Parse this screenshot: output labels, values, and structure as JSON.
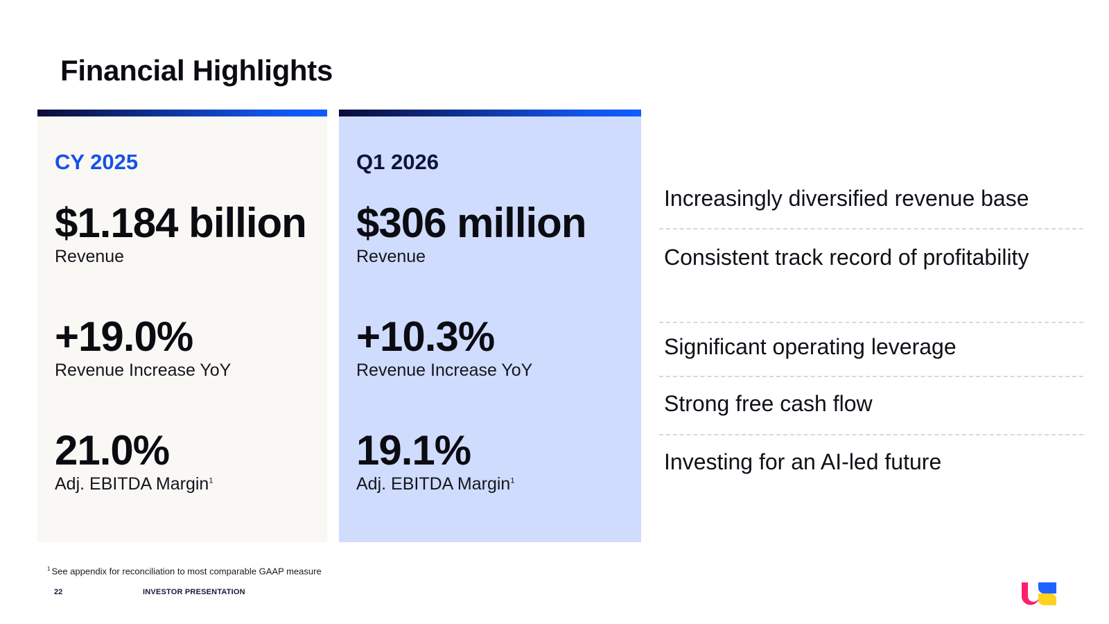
{
  "slide": {
    "title": "Financial Highlights"
  },
  "cards": {
    "cy": {
      "period": "CY 2025",
      "revenue_value": "$1.184 billion",
      "revenue_label": "Revenue",
      "growth_value": "+19.0%",
      "growth_label": "Revenue Increase YoY",
      "margin_value": "21.0%",
      "margin_label": "Adj. EBITDA Margin",
      "margin_sup": "1"
    },
    "q1": {
      "period": "Q1 2026",
      "revenue_value": "$306 million",
      "revenue_label": "Revenue",
      "growth_value": "+10.3%",
      "growth_label": "Revenue Increase YoY",
      "margin_value": "19.1%",
      "margin_label": "Adj. EBITDA Margin",
      "margin_sup": "1"
    }
  },
  "highlights": [
    "Increasingly diversified revenue base",
    "Consistent track record of profitability",
    "Significant operating leverage",
    "Strong free cash flow",
    "Investing for an AI-led future"
  ],
  "footer": {
    "footnote_mark": "1",
    "footnote": "See appendix for reconciliation to most comparable GAAP measure",
    "page_number": "22",
    "label": "INVESTOR PRESENTATION"
  },
  "colors": {
    "accent_blue": "#1652e6",
    "card_cy_bg": "#f9f8f5",
    "card_q1_bg": "#cfdcfd",
    "logo_pink": "#ff1f6e",
    "logo_blue": "#1f63ff",
    "logo_yellow": "#ffd21f"
  },
  "icons": {
    "logo": "us-logo-icon"
  }
}
